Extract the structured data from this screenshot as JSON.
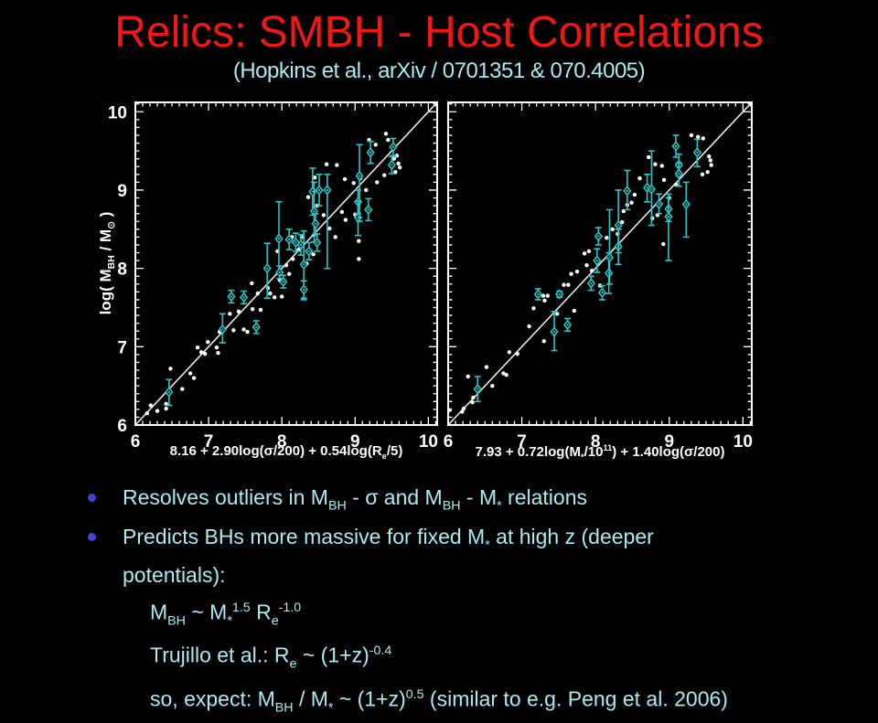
{
  "slide": {
    "title": "Relics: SMBH - Host Correlations",
    "subtitle": "(Hopkins et al., arXiv / 0701351 & 070.4005)",
    "colors": {
      "background": "#000000",
      "title_red": "#f21717",
      "body_cyan": "#aceaec",
      "bullet_dot_blue": "#4343cf",
      "plot_foreground": "#ffffff",
      "data_cyan": "#2cc4c4"
    }
  },
  "bullets": [
    {
      "label": "Resolves outliers in M_{BH} - σ and M_{BH} - M_{*} relations"
    },
    {
      "label": "Predicts BHs more massive for fixed M_{*} at high z (deeper potentials):"
    }
  ],
  "sub_lines": [
    "M_{BH} ~ M_{*}^{1.5} R_{e}^{-1.0}",
    "Trujillo et al.: R_{e} ~ (1+z)^{-0.4}",
    "so, expect: M_{BH} / M_{*} ~ (1+z)^{0.5} (similar to e.g. Peng et al. 2006)"
  ],
  "chart_data": [
    {
      "type": "scatter",
      "panel": "left",
      "xlabel": "8.16 + 2.90log(σ/200) + 0.54log(R_{e}/5)",
      "ylabel": "log( M_{BH} / M_{⊙} )",
      "xlim": [
        6,
        10.12
      ],
      "ylim": [
        6,
        10.12
      ],
      "xticks": [
        6,
        7,
        8,
        9,
        10
      ],
      "yticks": [
        6,
        7,
        8,
        9,
        10
      ],
      "minor_tick_step": 0.1,
      "identity_line": true,
      "show_y_tick_labels": true,
      "grid": false,
      "legend": "none",
      "series": [
        {
          "name": "white_dots",
          "marker": "dot",
          "color": "#ffffff",
          "points": [
            [
              6.16,
              6.15
            ],
            [
              6.21,
              6.25
            ],
            [
              6.3,
              6.18
            ],
            [
              6.42,
              6.27
            ],
            [
              6.42,
              6.21
            ],
            [
              6.48,
              6.72
            ],
            [
              6.64,
              6.46
            ],
            [
              6.75,
              6.66
            ],
            [
              6.8,
              6.6
            ],
            [
              6.85,
              6.99
            ],
            [
              6.9,
              6.93
            ],
            [
              6.95,
              6.91
            ],
            [
              6.99,
              7.06
            ],
            [
              7.11,
              6.99
            ],
            [
              7.13,
              6.92
            ],
            [
              7.15,
              7.19
            ],
            [
              7.29,
              7.42
            ],
            [
              7.34,
              7.21
            ],
            [
              7.41,
              7.45
            ],
            [
              7.48,
              7.22
            ],
            [
              7.53,
              7.19
            ],
            [
              7.59,
              7.81
            ],
            [
              7.6,
              7.48
            ],
            [
              7.67,
              7.68
            ],
            [
              7.71,
              7.47
            ],
            [
              7.81,
              7.75
            ],
            [
              7.84,
              7.68
            ],
            [
              7.9,
              7.63
            ],
            [
              7.97,
              7.85
            ],
            [
              8.0,
              7.64
            ],
            [
              7.94,
              8.22
            ],
            [
              8.06,
              8.04
            ],
            [
              8.1,
              7.93
            ],
            [
              8.14,
              8.4
            ],
            [
              8.15,
              8.12
            ],
            [
              8.23,
              8.24
            ],
            [
              8.27,
              8.4
            ],
            [
              8.34,
              8.06
            ],
            [
              8.36,
              8.91
            ],
            [
              8.43,
              8.18
            ],
            [
              8.44,
              8.43
            ],
            [
              8.45,
              9.16
            ],
            [
              8.48,
              8.8
            ],
            [
              8.57,
              8.68
            ],
            [
              8.61,
              9.33
            ],
            [
              8.65,
              8.51
            ],
            [
              8.73,
              8.4
            ],
            [
              8.75,
              9.32
            ],
            [
              8.82,
              8.72
            ],
            [
              8.86,
              9.14
            ],
            [
              8.87,
              8.62
            ],
            [
              8.98,
              9.09
            ],
            [
              9.0,
              8.69
            ],
            [
              9.05,
              8.35
            ],
            [
              9.05,
              8.12
            ],
            [
              9.07,
              9.15
            ],
            [
              9.15,
              9.0
            ],
            [
              9.19,
              9.64
            ],
            [
              9.28,
              9.58
            ],
            [
              9.3,
              9.1
            ],
            [
              9.4,
              9.19
            ],
            [
              9.42,
              9.72
            ],
            [
              9.45,
              9.64
            ],
            [
              9.53,
              9.4
            ],
            [
              9.55,
              9.23
            ],
            [
              9.57,
              9.44
            ],
            [
              9.59,
              9.34
            ],
            [
              9.61,
              9.29
            ]
          ]
        },
        {
          "name": "cyan_errorbar_points",
          "marker": "diamond",
          "color": "#2cc4c4",
          "points": [
            [
              6.46,
              6.42,
              6.25,
              6.58
            ],
            [
              7.19,
              7.22,
              7.05,
              7.42
            ],
            [
              7.31,
              7.64,
              7.56,
              7.72
            ],
            [
              7.48,
              7.63,
              7.55,
              7.71
            ],
            [
              7.65,
              7.25,
              7.17,
              7.33
            ],
            [
              7.8,
              8.0,
              7.62,
              8.32
            ],
            [
              7.96,
              8.38,
              7.95,
              8.85
            ],
            [
              7.97,
              7.95,
              7.87,
              8.03
            ],
            [
              8.02,
              7.83,
              7.75,
              7.91
            ],
            [
              8.1,
              8.37,
              8.24,
              8.5
            ],
            [
              8.19,
              8.33,
              8.22,
              8.45
            ],
            [
              8.26,
              8.3,
              8.17,
              8.43
            ],
            [
              8.3,
              8.05,
              7.6,
              8.48
            ],
            [
              8.3,
              7.73,
              7.62,
              7.84
            ],
            [
              8.37,
              8.22,
              8.11,
              8.33
            ],
            [
              8.42,
              8.98,
              8.68,
              9.28
            ],
            [
              8.44,
              8.73,
              8.34,
              9.1
            ],
            [
              8.46,
              8.57,
              8.44,
              8.7
            ],
            [
              8.48,
              8.33,
              8.22,
              8.44
            ],
            [
              8.51,
              9.0,
              8.8,
              9.2
            ],
            [
              8.62,
              9.0,
              8.0,
              9.2
            ],
            [
              9.04,
              8.85,
              8.7,
              9.0
            ],
            [
              9.04,
              8.65,
              8.42,
              8.86
            ],
            [
              9.06,
              9.18,
              8.6,
              9.58
            ],
            [
              9.18,
              8.75,
              8.61,
              8.89
            ],
            [
              9.21,
              9.48,
              9.34,
              9.62
            ],
            [
              9.5,
              9.32,
              9.21,
              9.43
            ],
            [
              9.52,
              9.55,
              9.44,
              9.66
            ]
          ]
        }
      ]
    },
    {
      "type": "scatter",
      "panel": "right",
      "xlabel": "7.93 + 0.72log(M_{*}/10^{11}) + 1.40log(σ/200)",
      "ylabel": "",
      "xlim": [
        6,
        10.12
      ],
      "ylim": [
        6,
        10.12
      ],
      "xticks": [
        6,
        7,
        8,
        9,
        10
      ],
      "yticks": [
        6,
        7,
        8,
        9,
        10
      ],
      "minor_tick_step": 0.1,
      "identity_line": true,
      "show_y_tick_labels": false,
      "grid": false,
      "legend": "none",
      "series": [
        {
          "name": "white_dots",
          "marker": "dot",
          "color": "#ffffff",
          "points": [
            [
              6.02,
              6.19
            ],
            [
              6.19,
              6.17
            ],
            [
              6.21,
              6.21
            ],
            [
              6.27,
              6.62
            ],
            [
              6.33,
              6.29
            ],
            [
              6.34,
              6.35
            ],
            [
              6.52,
              6.74
            ],
            [
              6.6,
              6.5
            ],
            [
              6.75,
              6.66
            ],
            [
              6.79,
              6.64
            ],
            [
              6.83,
              6.93
            ],
            [
              6.94,
              6.91
            ],
            [
              7.1,
              7.26
            ],
            [
              7.16,
              7.49
            ],
            [
              7.29,
              7.65
            ],
            [
              7.3,
              7.07
            ],
            [
              7.31,
              7.59
            ],
            [
              7.35,
              7.65
            ],
            [
              7.48,
              7.42
            ],
            [
              7.57,
              7.79
            ],
            [
              7.63,
              7.79
            ],
            [
              7.67,
              7.93
            ],
            [
              7.71,
              7.46
            ],
            [
              7.75,
              7.96
            ],
            [
              7.85,
              8.19
            ],
            [
              7.88,
              8.04
            ],
            [
              7.91,
              8.22
            ],
            [
              7.95,
              7.97
            ],
            [
              8.06,
              7.78
            ],
            [
              8.08,
              7.7
            ],
            [
              8.15,
              8.39
            ],
            [
              8.23,
              8.5
            ],
            [
              8.3,
              8.44
            ],
            [
              8.36,
              8.59
            ],
            [
              8.38,
              8.73
            ],
            [
              8.43,
              8.81
            ],
            [
              8.49,
              8.84
            ],
            [
              8.53,
              8.94
            ],
            [
              8.6,
              9.15
            ],
            [
              8.72,
              9.42
            ],
            [
              8.77,
              8.64
            ],
            [
              8.81,
              9.33
            ],
            [
              8.84,
              8.68
            ],
            [
              8.9,
              9.31
            ],
            [
              8.92,
              8.31
            ],
            [
              8.93,
              9.13
            ],
            [
              9.0,
              8.9
            ],
            [
              9.09,
              9.07
            ],
            [
              9.3,
              9.7
            ],
            [
              9.39,
              9.68
            ],
            [
              9.45,
              9.2
            ],
            [
              9.46,
              9.66
            ],
            [
              9.52,
              9.23
            ],
            [
              9.54,
              9.43
            ],
            [
              9.56,
              9.38
            ],
            [
              9.57,
              9.32
            ]
          ]
        },
        {
          "name": "cyan_errorbar_points",
          "marker": "diamond",
          "color": "#2cc4c4",
          "points": [
            [
              6.4,
              6.46,
              6.3,
              6.62
            ],
            [
              7.22,
              7.67,
              7.6,
              7.74
            ],
            [
              7.44,
              7.19,
              6.95,
              7.45
            ],
            [
              7.51,
              7.67,
              7.63,
              7.71
            ],
            [
              7.62,
              7.28,
              7.2,
              7.36
            ],
            [
              7.94,
              7.81,
              7.72,
              7.9
            ],
            [
              8.02,
              8.1,
              7.95,
              8.25
            ],
            [
              8.04,
              8.41,
              8.3,
              8.52
            ],
            [
              8.09,
              7.69,
              7.6,
              7.78
            ],
            [
              8.18,
              7.94,
              7.68,
              8.2
            ],
            [
              8.19,
              8.14,
              7.8,
              8.75
            ],
            [
              8.31,
              8.28,
              8.05,
              8.5
            ],
            [
              8.31,
              8.55,
              8.2,
              9.0
            ],
            [
              8.43,
              8.99,
              8.75,
              9.25
            ],
            [
              8.7,
              9.03,
              8.85,
              9.2
            ],
            [
              8.76,
              9.01,
              8.55,
              9.5
            ],
            [
              8.86,
              8.82,
              8.7,
              8.95
            ],
            [
              8.99,
              8.76,
              8.6,
              8.9
            ],
            [
              8.99,
              8.66,
              8.1,
              8.95
            ],
            [
              9.09,
              9.56,
              9.42,
              9.7
            ],
            [
              9.13,
              9.32,
              9.18,
              9.46
            ],
            [
              9.13,
              9.21,
              9.05,
              9.35
            ],
            [
              9.23,
              8.82,
              8.4,
              9.1
            ],
            [
              9.38,
              9.48,
              9.3,
              9.65
            ]
          ]
        }
      ]
    }
  ]
}
